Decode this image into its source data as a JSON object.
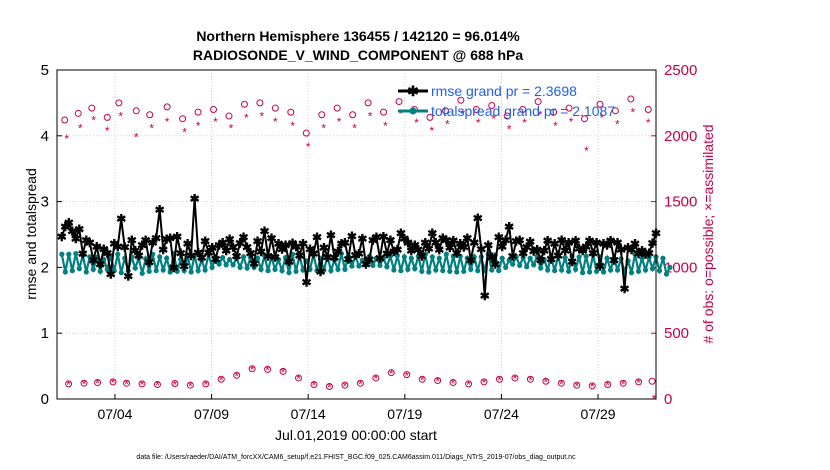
{
  "chart_data": {
    "type": "line",
    "title_line1": "Northern Hemisphere 136455 / 142120 = 96.014%",
    "title_line2": "RADIOSONDE_V_WIND_COMPONENT @ 688 hPa",
    "ylabel_left": "rmse and totalspread",
    "ylabel_right": "# of obs: o=possible; ×=assimilated",
    "xlabel": "Jul.01,2019 00:00:00 start",
    "footer": "data file: /Users/raeder/DAI/ATM_forcXX/CAM6_setup/f.e21.FHIST_BGC.f09_025.CAM6assim.011/Diags_NTrS_2019-07/obs_diag_output.nc",
    "x_range_days": [
      1,
      32
    ],
    "x_ticks": [
      {
        "day": 4,
        "label": "07/04"
      },
      {
        "day": 9,
        "label": "07/09"
      },
      {
        "day": 14,
        "label": "07/14"
      },
      {
        "day": 19,
        "label": "07/19"
      },
      {
        "day": 24,
        "label": "07/24"
      },
      {
        "day": 29,
        "label": "07/29"
      }
    ],
    "ylim_left": [
      0,
      5
    ],
    "yticks_left": [
      "0",
      "1",
      "2",
      "3",
      "4",
      "5"
    ],
    "ylim_right": [
      0,
      2500
    ],
    "yticks_right": [
      "0",
      "500",
      "1000",
      "1500",
      "2000",
      "2500"
    ],
    "legend": [
      {
        "name": "rmse",
        "label": "rmse grand pr = 2.3698",
        "color": "#000000"
      },
      {
        "name": "totalspread",
        "label": "totalspread grand pr = 2.1087",
        "color": "#008080"
      }
    ],
    "colors": {
      "obs": "#c8004b",
      "rmse": "#000000",
      "spread": "#008080",
      "legend_text": "#1f5ff0"
    },
    "series": [
      {
        "name": "rmse",
        "values": [
          2.47,
          2.62,
          2.68,
          2.55,
          2.44,
          2.58,
          2.21,
          2.42,
          2.38,
          2.11,
          2.32,
          2.05,
          2.28,
          2.22,
          1.9,
          2.36,
          2.32,
          2.74,
          2.31,
          1.87,
          2.42,
          2.26,
          2.18,
          2.34,
          2.42,
          2.08,
          2.38,
          2.45,
          2.88,
          2.27,
          2.43,
          2.45,
          2.0,
          2.47,
          2.22,
          2.02,
          2.36,
          2.18,
          3.05,
          2.23,
          2.15,
          2.4,
          2.23,
          2.3,
          2.13,
          2.34,
          2.38,
          2.26,
          2.43,
          2.31,
          2.17,
          2.37,
          2.46,
          2.31,
          2.22,
          2.06,
          2.4,
          2.24,
          2.55,
          2.17,
          2.45,
          2.16,
          2.36,
          2.28,
          2.34,
          2.09,
          2.37,
          2.32,
          2.18,
          2.36,
          1.78,
          2.28,
          2.21,
          2.46,
          1.94,
          2.3,
          2.16,
          2.49,
          2.15,
          2.24,
          2.36,
          2.38,
          2.13,
          2.48,
          2.19,
          2.21,
          2.44,
          2.05,
          2.12,
          2.42,
          2.46,
          2.14,
          2.47,
          2.21,
          2.42,
          2.24,
          2.27,
          2.52,
          2.44,
          2.38,
          2.26,
          2.34,
          2.27,
          2.17,
          2.38,
          2.29,
          2.52,
          2.38,
          2.27,
          2.45,
          2.42,
          2.3,
          2.41,
          2.22,
          2.36,
          2.31,
          2.45,
          2.11,
          2.38,
          2.75,
          2.28,
          1.57,
          2.34,
          2.16,
          2.05,
          2.46,
          2.32,
          2.42,
          2.62,
          2.17,
          2.4,
          2.42,
          2.22,
          2.31,
          2.39,
          2.25,
          2.27,
          2.11,
          2.26,
          2.41,
          2.13,
          2.36,
          2.18,
          2.42,
          2.26,
          2.38,
          2.09,
          2.41,
          2.29,
          2.26,
          2.32,
          2.41,
          2.22,
          2.38,
          2.02,
          2.36,
          2.34,
          2.41,
          2.11,
          2.38,
          2.27,
          1.68,
          2.3,
          2.27,
          2.36,
          2.21,
          2.26,
          2.2,
          2.22,
          2.37,
          2.52
        ]
      },
      {
        "name": "totalspread",
        "values": [
          2.2,
          1.93,
          2.2,
          1.95,
          2.21,
          1.98,
          2.18,
          1.93,
          2.16,
          1.97,
          2.15,
          1.94,
          2.12,
          1.97,
          2.18,
          1.95,
          2.2,
          1.92,
          2.14,
          1.95,
          2.16,
          1.99,
          2.14,
          1.91,
          2.13,
          1.94,
          2.2,
          1.95,
          2.16,
          1.96,
          2.14,
          1.93,
          2.21,
          1.94,
          2.12,
          1.95,
          2.17,
          1.93,
          2.18,
          1.95,
          2.11,
          1.96,
          2.2,
          2.0,
          2.16,
          2.05,
          2.15,
          2.04,
          2.12,
          2.04,
          2.14,
          2.0,
          2.16,
          1.99,
          2.15,
          2.0,
          2.14,
          1.97,
          2.18,
          1.95,
          2.16,
          1.97,
          2.12,
          1.95,
          2.15,
          1.92,
          2.2,
          1.94,
          2.18,
          1.96,
          2.1,
          1.97,
          2.2,
          1.95,
          2.13,
          1.96,
          2.17,
          1.95,
          2.11,
          1.97,
          2.21,
          1.97,
          2.17,
          2.02,
          2.17,
          2.02,
          2.11,
          2.04,
          2.17,
          2.03,
          2.14,
          2.03,
          2.14,
          2.01,
          2.17,
          1.96,
          2.18,
          1.95,
          2.16,
          1.97,
          2.14,
          1.98,
          2.17,
          1.94,
          2.2,
          1.93,
          2.16,
          1.96,
          2.14,
          1.95,
          2.2,
          1.94,
          2.17,
          1.93,
          2.17,
          1.94,
          2.14,
          1.97,
          2.16,
          1.95,
          2.16,
          1.95,
          2.2,
          1.96,
          2.19,
          1.95,
          2.14,
          2.0,
          2.11,
          2.05,
          2.16,
          2.03,
          2.15,
          2.01,
          2.14,
          2.04,
          2.17,
          1.99,
          2.12,
          1.96,
          2.17,
          1.95,
          2.17,
          1.96,
          2.15,
          1.94,
          2.17,
          1.97,
          2.16,
          1.92,
          2.17,
          1.93,
          2.19,
          1.94,
          2.16,
          1.93,
          2.14,
          1.96,
          2.14,
          1.96,
          2.13,
          1.93,
          2.1,
          1.92,
          2.2,
          1.94,
          2.14,
          1.96,
          2.15,
          1.98,
          2.16,
          1.95,
          2.14,
          1.9,
          2.0
        ]
      },
      {
        "name": "obs_possible",
        "axis": "right",
        "points": [
          {
            "day": 1.4,
            "value": 2120
          },
          {
            "day": 1.6,
            "value": 115
          },
          {
            "day": 2.1,
            "value": 2170
          },
          {
            "day": 2.4,
            "value": 120
          },
          {
            "day": 2.8,
            "value": 2210
          },
          {
            "day": 3.1,
            "value": 125
          },
          {
            "day": 3.6,
            "value": 2140
          },
          {
            "day": 3.9,
            "value": 130
          },
          {
            "day": 4.2,
            "value": 2250
          },
          {
            "day": 4.6,
            "value": 120
          },
          {
            "day": 5.1,
            "value": 2190
          },
          {
            "day": 5.4,
            "value": 115
          },
          {
            "day": 5.8,
            "value": 2160
          },
          {
            "day": 6.2,
            "value": 110
          },
          {
            "day": 6.7,
            "value": 2220
          },
          {
            "day": 7.1,
            "value": 118
          },
          {
            "day": 7.5,
            "value": 2130
          },
          {
            "day": 7.9,
            "value": 105
          },
          {
            "day": 8.3,
            "value": 2180
          },
          {
            "day": 8.7,
            "value": 115
          },
          {
            "day": 9.1,
            "value": 2200
          },
          {
            "day": 9.5,
            "value": 150
          },
          {
            "day": 9.9,
            "value": 2150
          },
          {
            "day": 10.3,
            "value": 180
          },
          {
            "day": 10.7,
            "value": 2240
          },
          {
            "day": 11.1,
            "value": 230
          },
          {
            "day": 11.5,
            "value": 2250
          },
          {
            "day": 11.9,
            "value": 225
          },
          {
            "day": 12.3,
            "value": 2210
          },
          {
            "day": 12.7,
            "value": 210
          },
          {
            "day": 13.1,
            "value": 2180
          },
          {
            "day": 13.5,
            "value": 160
          },
          {
            "day": 13.9,
            "value": 2020
          },
          {
            "day": 14.3,
            "value": 110
          },
          {
            "day": 14.7,
            "value": 2160
          },
          {
            "day": 15.1,
            "value": 95
          },
          {
            "day": 15.5,
            "value": 2210
          },
          {
            "day": 15.9,
            "value": 105
          },
          {
            "day": 16.3,
            "value": 2160
          },
          {
            "day": 16.7,
            "value": 120
          },
          {
            "day": 17.1,
            "value": 2250
          },
          {
            "day": 17.5,
            "value": 160
          },
          {
            "day": 17.9,
            "value": 2180
          },
          {
            "day": 18.3,
            "value": 200
          },
          {
            "day": 18.7,
            "value": 2260
          },
          {
            "day": 19.1,
            "value": 185
          },
          {
            "day": 19.5,
            "value": 2200
          },
          {
            "day": 19.9,
            "value": 150
          },
          {
            "day": 20.3,
            "value": 2140
          },
          {
            "day": 20.7,
            "value": 140
          },
          {
            "day": 21.1,
            "value": 2190
          },
          {
            "day": 21.5,
            "value": 125
          },
          {
            "day": 21.9,
            "value": 2270
          },
          {
            "day": 22.3,
            "value": 115
          },
          {
            "day": 22.7,
            "value": 2200
          },
          {
            "day": 23.1,
            "value": 130
          },
          {
            "day": 23.5,
            "value": 2230
          },
          {
            "day": 23.9,
            "value": 150
          },
          {
            "day": 24.3,
            "value": 2150
          },
          {
            "day": 24.7,
            "value": 160
          },
          {
            "day": 25.1,
            "value": 2200
          },
          {
            "day": 25.5,
            "value": 150
          },
          {
            "day": 25.9,
            "value": 2260
          },
          {
            "day": 26.3,
            "value": 135
          },
          {
            "day": 26.7,
            "value": 2180
          },
          {
            "day": 27.1,
            "value": 120
          },
          {
            "day": 27.5,
            "value": 2210
          },
          {
            "day": 27.9,
            "value": 105
          },
          {
            "day": 28.3,
            "value": 2130
          },
          {
            "day": 28.7,
            "value": 100
          },
          {
            "day": 29.1,
            "value": 2240
          },
          {
            "day": 29.5,
            "value": 110
          },
          {
            "day": 29.9,
            "value": 2190
          },
          {
            "day": 30.3,
            "value": 120
          },
          {
            "day": 30.7,
            "value": 2280
          },
          {
            "day": 31.1,
            "value": 130
          },
          {
            "day": 31.6,
            "value": 2200
          },
          {
            "day": 31.8,
            "value": 135
          }
        ]
      },
      {
        "name": "obs_assimilated",
        "axis": "right",
        "points": [
          {
            "day": 1.5,
            "value": 1980
          },
          {
            "day": 1.6,
            "value": 110
          },
          {
            "day": 2.2,
            "value": 2060
          },
          {
            "day": 2.4,
            "value": 115
          },
          {
            "day": 2.9,
            "value": 2120
          },
          {
            "day": 3.1,
            "value": 120
          },
          {
            "day": 3.6,
            "value": 2040
          },
          {
            "day": 3.9,
            "value": 125
          },
          {
            "day": 4.3,
            "value": 2150
          },
          {
            "day": 4.6,
            "value": 115
          },
          {
            "day": 5.1,
            "value": 1990
          },
          {
            "day": 5.4,
            "value": 110
          },
          {
            "day": 5.9,
            "value": 2060
          },
          {
            "day": 6.2,
            "value": 105
          },
          {
            "day": 6.7,
            "value": 2110
          },
          {
            "day": 7.1,
            "value": 112
          },
          {
            "day": 7.6,
            "value": 2030
          },
          {
            "day": 7.9,
            "value": 100
          },
          {
            "day": 8.3,
            "value": 2080
          },
          {
            "day": 8.7,
            "value": 110
          },
          {
            "day": 9.2,
            "value": 2110
          },
          {
            "day": 9.5,
            "value": 145
          },
          {
            "day": 10.0,
            "value": 2060
          },
          {
            "day": 10.3,
            "value": 175
          },
          {
            "day": 10.8,
            "value": 2140
          },
          {
            "day": 11.1,
            "value": 225
          },
          {
            "day": 11.6,
            "value": 2150
          },
          {
            "day": 11.9,
            "value": 220
          },
          {
            "day": 12.3,
            "value": 2110
          },
          {
            "day": 12.7,
            "value": 205
          },
          {
            "day": 13.2,
            "value": 2080
          },
          {
            "day": 13.5,
            "value": 155
          },
          {
            "day": 14.0,
            "value": 1920
          },
          {
            "day": 14.3,
            "value": 105
          },
          {
            "day": 14.8,
            "value": 2060
          },
          {
            "day": 15.1,
            "value": 90
          },
          {
            "day": 15.6,
            "value": 2110
          },
          {
            "day": 15.9,
            "value": 100
          },
          {
            "day": 16.4,
            "value": 2060
          },
          {
            "day": 16.7,
            "value": 115
          },
          {
            "day": 17.2,
            "value": 2150
          },
          {
            "day": 17.5,
            "value": 155
          },
          {
            "day": 18.0,
            "value": 2080
          },
          {
            "day": 18.3,
            "value": 195
          },
          {
            "day": 18.8,
            "value": 2170
          },
          {
            "day": 19.1,
            "value": 180
          },
          {
            "day": 19.6,
            "value": 2100
          },
          {
            "day": 19.9,
            "value": 145
          },
          {
            "day": 20.4,
            "value": 2040
          },
          {
            "day": 20.7,
            "value": 135
          },
          {
            "day": 21.2,
            "value": 2090
          },
          {
            "day": 21.5,
            "value": 120
          },
          {
            "day": 22.0,
            "value": 2170
          },
          {
            "day": 22.3,
            "value": 110
          },
          {
            "day": 22.8,
            "value": 2100
          },
          {
            "day": 23.1,
            "value": 125
          },
          {
            "day": 23.6,
            "value": 2130
          },
          {
            "day": 23.9,
            "value": 145
          },
          {
            "day": 24.4,
            "value": 2050
          },
          {
            "day": 24.7,
            "value": 155
          },
          {
            "day": 25.2,
            "value": 2100
          },
          {
            "day": 25.5,
            "value": 145
          },
          {
            "day": 26.0,
            "value": 2160
          },
          {
            "day": 26.3,
            "value": 130
          },
          {
            "day": 26.8,
            "value": 2080
          },
          {
            "day": 27.1,
            "value": 115
          },
          {
            "day": 27.6,
            "value": 2110
          },
          {
            "day": 27.9,
            "value": 100
          },
          {
            "day": 28.4,
            "value": 1890
          },
          {
            "day": 28.7,
            "value": 95
          },
          {
            "day": 29.2,
            "value": 2140
          },
          {
            "day": 29.5,
            "value": 105
          },
          {
            "day": 30.0,
            "value": 2090
          },
          {
            "day": 30.3,
            "value": 115
          },
          {
            "day": 30.8,
            "value": 2180
          },
          {
            "day": 31.1,
            "value": 125
          },
          {
            "day": 31.6,
            "value": 2100
          },
          {
            "day": 31.9,
            "value": 5
          }
        ]
      }
    ]
  }
}
